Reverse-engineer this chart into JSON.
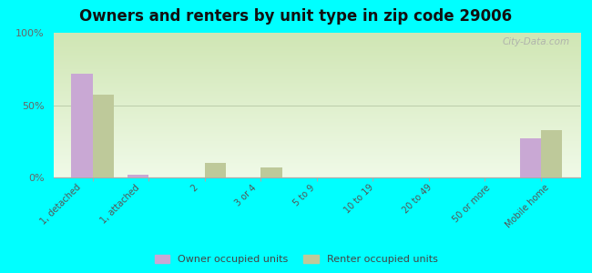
{
  "title": "Owners and renters by unit type in zip code 29006",
  "categories": [
    "1, detached",
    "1, attached",
    "2",
    "3 or 4",
    "5 to 9",
    "10 to 19",
    "20 to 49",
    "50 or more",
    "Mobile home"
  ],
  "owner_values": [
    72,
    2,
    0,
    0,
    0,
    0,
    0,
    0,
    27
  ],
  "renter_values": [
    57,
    0,
    10,
    7,
    0,
    0,
    0,
    0,
    33
  ],
  "owner_color": "#c9a8d4",
  "renter_color": "#bec99a",
  "background_color": "#00ffff",
  "ylabel_ticks": [
    "0%",
    "50%",
    "100%"
  ],
  "yticks": [
    0,
    50,
    100
  ],
  "ylim": [
    0,
    100
  ],
  "bar_width": 0.38,
  "title_fontsize": 12,
  "legend_labels": [
    "Owner occupied units",
    "Renter occupied units"
  ],
  "watermark": "City-Data.com",
  "grad_top": "#f0f8e8",
  "grad_bottom": "#d4e8b0"
}
